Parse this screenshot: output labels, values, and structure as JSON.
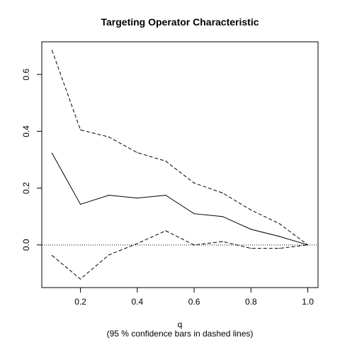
{
  "chart_data": {
    "type": "line",
    "title": "Targeting Operator Characteristic",
    "xlabel": "q",
    "subtitle": "(95 % confidence bars in dashed lines)",
    "ylabel": "",
    "xlim": [
      0.064,
      1.036
    ],
    "ylim": [
      -0.15,
      0.715
    ],
    "x_ticks": [
      0.2,
      0.4,
      0.6,
      0.8,
      1.0
    ],
    "x_tick_labels": [
      "0.2",
      "0.4",
      "0.6",
      "0.8",
      "1.0"
    ],
    "y_ticks": [
      0.0,
      0.2,
      0.4,
      0.6
    ],
    "y_tick_labels": [
      "0.0",
      "0.2",
      "0.4",
      "0.6"
    ],
    "reference_line": {
      "y": 0.0,
      "style": "dotted"
    },
    "grid": false,
    "x": [
      0.1,
      0.2,
      0.3,
      0.4,
      0.5,
      0.6,
      0.7,
      0.8,
      0.9,
      1.0
    ],
    "series": [
      {
        "style": "solid",
        "values": [
          0.323,
          0.143,
          0.175,
          0.165,
          0.175,
          0.11,
          0.1,
          0.055,
          0.03,
          0.0
        ]
      },
      {
        "style": "dashed",
        "values": [
          0.685,
          0.405,
          0.38,
          0.325,
          0.295,
          0.218,
          0.183,
          0.123,
          0.075,
          0.0
        ]
      },
      {
        "style": "dashed",
        "values": [
          -0.037,
          -0.12,
          -0.035,
          0.005,
          0.05,
          0.0,
          0.012,
          -0.012,
          -0.012,
          0.0
        ]
      }
    ]
  }
}
